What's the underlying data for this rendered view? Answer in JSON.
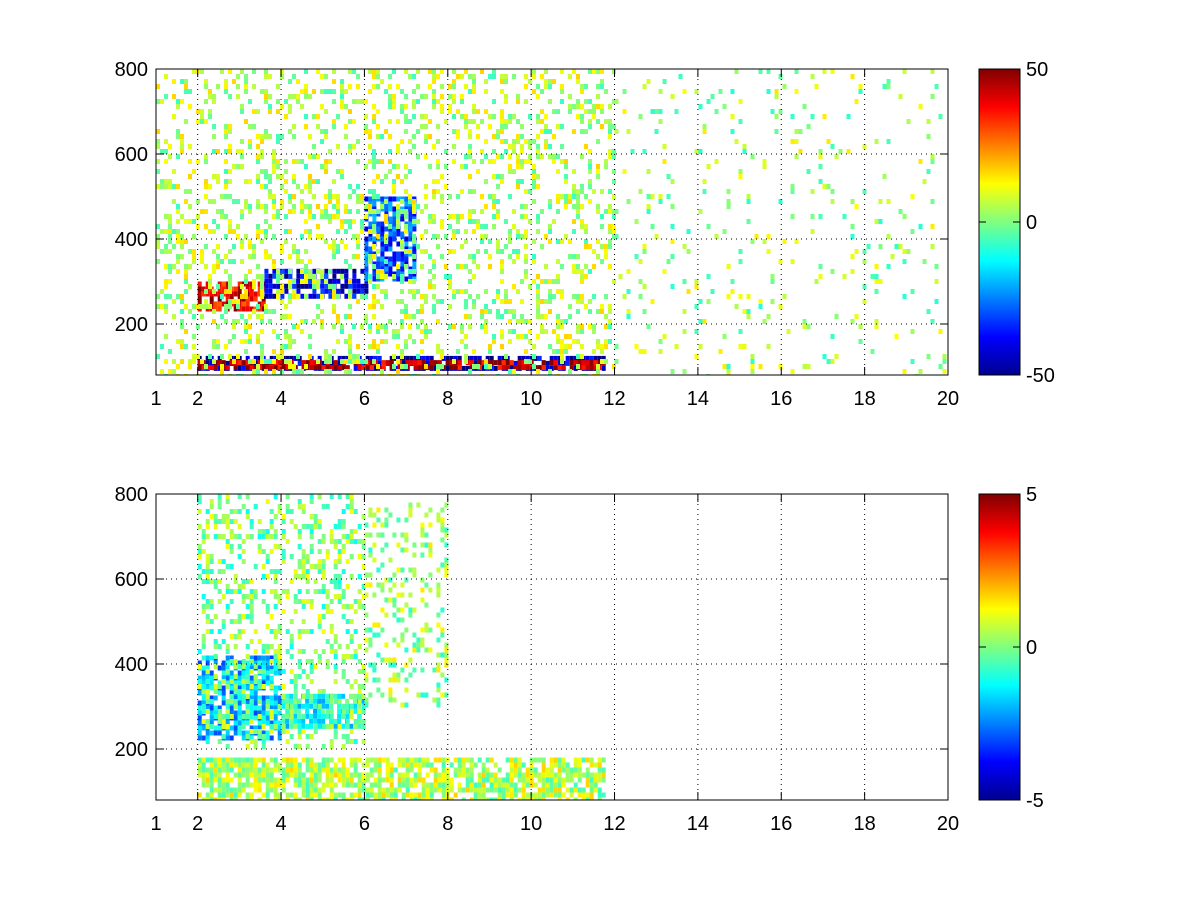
{
  "chart_data": [
    {
      "type": "heatmap",
      "title": "",
      "xlabel": "",
      "ylabel": "",
      "xlim": [
        1,
        20
      ],
      "ylim": [
        80,
        800
      ],
      "xticks": [
        1,
        2,
        4,
        6,
        8,
        10,
        12,
        14,
        16,
        18,
        20
      ],
      "yticks": [
        200,
        400,
        600,
        800
      ],
      "grid": true,
      "colormap": "jet",
      "clim": [
        -50,
        50
      ],
      "colorbar_ticks": [
        -50,
        0,
        50
      ],
      "features": [
        {
          "x_range": [
            2.0,
            3.6
          ],
          "y_range": [
            230,
            300
          ],
          "value": 40
        },
        {
          "x_range": [
            3.6,
            6.0
          ],
          "y_range": [
            260,
            330
          ],
          "value": -40
        },
        {
          "x_range": [
            2.0,
            11.7
          ],
          "y_range": [
            95,
            125
          ],
          "value": -45
        },
        {
          "x_range": [
            2.0,
            11.7
          ],
          "y_range": [
            100,
            115
          ],
          "value": 45
        },
        {
          "x_range": [
            6.0,
            7.2
          ],
          "y_range": [
            300,
            500
          ],
          "value": -30
        },
        {
          "x_range": [
            1.0,
            12.0
          ],
          "y_range": [
            80,
            800
          ],
          "value": 5,
          "density": 0.25
        },
        {
          "x_range": [
            12.0,
            20.0
          ],
          "y_range": [
            80,
            800
          ],
          "value": 3,
          "density": 0.06
        }
      ]
    },
    {
      "type": "heatmap",
      "title": "",
      "xlabel": "",
      "ylabel": "",
      "xlim": [
        1,
        20
      ],
      "ylim": [
        80,
        800
      ],
      "xticks": [
        1,
        2,
        4,
        6,
        8,
        10,
        12,
        14,
        16,
        18,
        20
      ],
      "yticks": [
        200,
        400,
        600,
        800
      ],
      "grid": true,
      "colormap": "jet",
      "clim": [
        -5,
        5
      ],
      "colorbar_ticks": [
        -5,
        0,
        5
      ],
      "features": [
        {
          "x_range": [
            2.0,
            4.0
          ],
          "y_range": [
            230,
            420
          ],
          "value": -2
        },
        {
          "x_range": [
            4.0,
            6.0
          ],
          "y_range": [
            250,
            330
          ],
          "value": -1
        },
        {
          "x_range": [
            2.0,
            11.7
          ],
          "y_range": [
            85,
            180
          ],
          "value": 0.5
        },
        {
          "x_range": [
            2.0,
            6.0
          ],
          "y_range": [
            200,
            800
          ],
          "value": 0,
          "density": 0.3
        },
        {
          "x_range": [
            6.0,
            8.0
          ],
          "y_range": [
            300,
            780
          ],
          "value": 0.3,
          "density": 0.25
        }
      ]
    }
  ]
}
